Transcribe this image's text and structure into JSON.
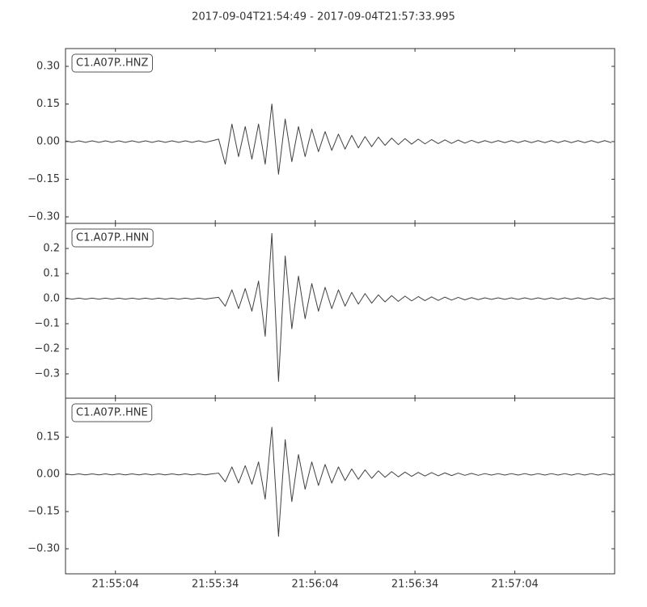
{
  "chart_data": [
    {
      "type": "line",
      "title": "2017-09-04T21:54:49  -  2017-09-04T21:57:33.995",
      "label": "C1.A07P..HNZ",
      "color": "#404040",
      "xlim": [
        0,
        164.995
      ],
      "ylim": [
        -0.326,
        0.371
      ],
      "yticks": [
        {
          "value": 0.3,
          "label": "0.30"
        },
        {
          "value": 0.15,
          "label": "0.15"
        },
        {
          "value": 0,
          "label": "0.00"
        },
        {
          "value": -0.15,
          "label": "−0.15"
        },
        {
          "value": -0.3,
          "label": "−0.30"
        }
      ],
      "x": [
        0,
        2,
        4,
        6,
        8,
        10,
        12,
        14,
        16,
        18,
        20,
        22,
        24,
        26,
        28,
        30,
        32,
        34,
        36,
        38,
        40,
        42,
        44,
        46,
        48,
        50,
        52,
        54,
        56,
        58,
        60,
        62,
        64,
        66,
        68,
        70,
        72,
        74,
        76,
        78,
        80,
        82,
        84,
        86,
        88,
        90,
        92,
        94,
        96,
        98,
        100,
        102,
        104,
        106,
        108,
        110,
        112,
        114,
        116,
        118,
        120,
        122,
        124,
        126,
        128,
        130,
        132,
        134,
        136,
        138,
        140,
        142,
        144,
        146,
        148,
        150,
        152,
        154,
        156,
        158,
        160,
        162,
        164
      ],
      "values": [
        0.003,
        -0.003,
        0.003,
        -0.003,
        0.003,
        -0.003,
        0.003,
        -0.003,
        0.003,
        -0.003,
        0.003,
        -0.003,
        0.003,
        -0.003,
        0.003,
        -0.003,
        0.003,
        -0.003,
        0.003,
        -0.003,
        0.003,
        -0.003,
        0.003,
        0.01,
        -0.09,
        0.07,
        -0.06,
        0.06,
        -0.07,
        0.07,
        -0.09,
        0.15,
        -0.13,
        0.09,
        -0.08,
        0.06,
        -0.06,
        0.05,
        -0.04,
        0.04,
        -0.035,
        0.03,
        -0.03,
        0.025,
        -0.025,
        0.02,
        -0.02,
        0.018,
        -0.015,
        0.014,
        -0.012,
        0.012,
        -0.01,
        0.01,
        -0.009,
        0.008,
        -0.008,
        0.007,
        -0.007,
        0.006,
        -0.006,
        0.005,
        -0.005,
        0.004,
        -0.004,
        0.004,
        -0.004,
        0.004,
        -0.004,
        0.004,
        -0.004,
        0.004,
        -0.004,
        0.004,
        -0.004,
        0.004,
        -0.004,
        0.004,
        -0.004,
        0.004,
        -0.004,
        0.004,
        -0.004
      ]
    },
    {
      "type": "line",
      "label": "C1.A07P..HNN",
      "color": "#404040",
      "xlim": [
        0,
        164.995
      ],
      "ylim": [
        -0.397,
        0.3
      ],
      "yticks": [
        0.2,
        0.1,
        {
          "value": 0,
          "label": "0.0"
        },
        {
          "value": -0.1,
          "label": "−0.1"
        },
        {
          "value": -0.2,
          "label": "−0.2"
        },
        {
          "value": -0.3,
          "label": "−0.3"
        }
      ],
      "x": [
        0,
        2,
        4,
        6,
        8,
        10,
        12,
        14,
        16,
        18,
        20,
        22,
        24,
        26,
        28,
        30,
        32,
        34,
        36,
        38,
        40,
        42,
        44,
        46,
        48,
        50,
        52,
        54,
        56,
        58,
        60,
        62,
        64,
        66,
        68,
        70,
        72,
        74,
        76,
        78,
        80,
        82,
        84,
        86,
        88,
        90,
        92,
        94,
        96,
        98,
        100,
        102,
        104,
        106,
        108,
        110,
        112,
        114,
        116,
        118,
        120,
        122,
        124,
        126,
        128,
        130,
        132,
        134,
        136,
        138,
        140,
        142,
        144,
        146,
        148,
        150,
        152,
        154,
        156,
        158,
        160,
        162,
        164
      ],
      "values": [
        0.002,
        -0.002,
        0.002,
        -0.002,
        0.002,
        -0.002,
        0.002,
        -0.002,
        0.002,
        -0.002,
        0.002,
        -0.002,
        0.002,
        -0.002,
        0.002,
        -0.002,
        0.002,
        -0.002,
        0.002,
        -0.002,
        0.002,
        -0.002,
        0.002,
        0.005,
        -0.03,
        0.035,
        -0.04,
        0.04,
        -0.05,
        0.07,
        -0.15,
        0.26,
        -0.33,
        0.17,
        -0.12,
        0.09,
        -0.08,
        0.06,
        -0.05,
        0.045,
        -0.04,
        0.035,
        -0.03,
        0.025,
        -0.022,
        0.02,
        -0.018,
        0.015,
        -0.013,
        0.012,
        -0.011,
        0.01,
        -0.009,
        0.008,
        -0.008,
        0.007,
        -0.007,
        0.006,
        -0.006,
        0.005,
        -0.005,
        0.004,
        -0.004,
        0.003,
        -0.003,
        0.003,
        -0.003,
        0.003,
        -0.003,
        0.003,
        -0.003,
        0.003,
        -0.003,
        0.003,
        -0.003,
        0.003,
        -0.003,
        0.003,
        -0.003,
        0.003,
        -0.003,
        0.003,
        -0.003
      ]
    },
    {
      "type": "line",
      "label": "C1.A07P..HNE",
      "color": "#404040",
      "xlim": [
        0,
        164.995
      ],
      "ylim": [
        -0.401,
        0.307
      ],
      "yticks": [
        {
          "value": 0.15,
          "label": "0.15"
        },
        {
          "value": 0,
          "label": "0.00"
        },
        {
          "value": -0.15,
          "label": "−0.15"
        },
        {
          "value": -0.3,
          "label": "−0.30"
        }
      ],
      "xticks": [
        {
          "value": 15,
          "label": "21:55:04"
        },
        {
          "value": 45,
          "label": "21:55:34"
        },
        {
          "value": 75,
          "label": "21:56:04"
        },
        {
          "value": 105,
          "label": "21:56:34"
        },
        {
          "value": 135,
          "label": "21:57:04"
        }
      ],
      "x": [
        0,
        2,
        4,
        6,
        8,
        10,
        12,
        14,
        16,
        18,
        20,
        22,
        24,
        26,
        28,
        30,
        32,
        34,
        36,
        38,
        40,
        42,
        44,
        46,
        48,
        50,
        52,
        54,
        56,
        58,
        60,
        62,
        64,
        66,
        68,
        70,
        72,
        74,
        76,
        78,
        80,
        82,
        84,
        86,
        88,
        90,
        92,
        94,
        96,
        98,
        100,
        102,
        104,
        106,
        108,
        110,
        112,
        114,
        116,
        118,
        120,
        122,
        124,
        126,
        128,
        130,
        132,
        134,
        136,
        138,
        140,
        142,
        144,
        146,
        148,
        150,
        152,
        154,
        156,
        158,
        160,
        162,
        164
      ],
      "values": [
        0.002,
        -0.002,
        0.002,
        -0.002,
        0.002,
        -0.002,
        0.002,
        -0.002,
        0.002,
        -0.002,
        0.002,
        -0.002,
        0.002,
        -0.002,
        0.002,
        -0.002,
        0.002,
        -0.002,
        0.002,
        -0.002,
        0.002,
        -0.002,
        0.002,
        0.005,
        -0.03,
        0.03,
        -0.035,
        0.035,
        -0.04,
        0.05,
        -0.1,
        0.19,
        -0.25,
        0.14,
        -0.11,
        0.08,
        -0.06,
        0.05,
        -0.045,
        0.04,
        -0.035,
        0.03,
        -0.025,
        0.022,
        -0.02,
        0.018,
        -0.016,
        0.014,
        -0.012,
        0.011,
        -0.01,
        0.009,
        -0.008,
        0.008,
        -0.007,
        0.007,
        -0.006,
        0.006,
        -0.005,
        0.005,
        -0.004,
        0.004,
        -0.004,
        0.003,
        -0.003,
        0.003,
        -0.003,
        0.003,
        -0.003,
        0.003,
        -0.003,
        0.003,
        -0.003,
        0.003,
        -0.003,
        0.003,
        -0.003,
        0.003,
        -0.003,
        0.003,
        -0.003,
        0.003,
        -0.003
      ]
    }
  ]
}
